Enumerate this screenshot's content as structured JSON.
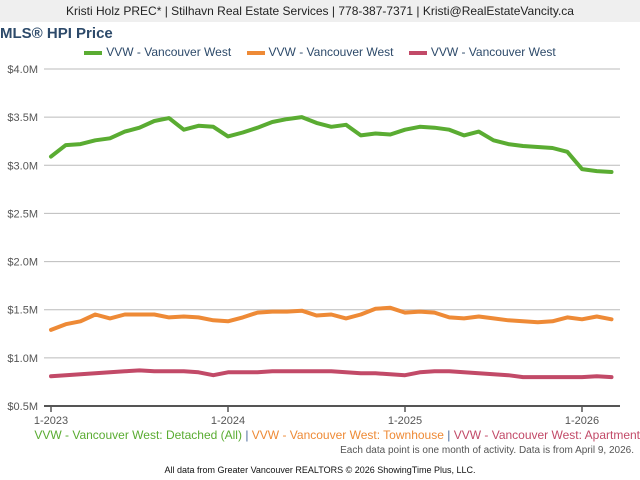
{
  "header": {
    "contact": "Kristi Holz PREC* | Stilhavn Real Estate Services | 778-387-7371 | Kristi@RealEstateVancity.ca"
  },
  "chart_data": {
    "type": "line",
    "title": "MLS® HPI Price",
    "xlabel": "",
    "ylabel": "",
    "x_tick_labels": [
      "1-2023",
      "1-2024",
      "1-2025",
      "1-2026"
    ],
    "y_tick_labels": [
      "$0.5M",
      "$1.0M",
      "$1.5M",
      "$2.0M",
      "$2.5M",
      "$3.0M",
      "$3.5M",
      "$4.0M"
    ],
    "ylim": [
      0.5,
      4.0
    ],
    "x_start": "1-2023",
    "x_months": 39,
    "grid": true,
    "legend_position": "top",
    "series": [
      {
        "name": "VVW - Vancouver West",
        "full_name": "VVW - Vancouver West: Detached (All)",
        "color": "#5aac32",
        "values": [
          3.09,
          3.21,
          3.22,
          3.26,
          3.28,
          3.35,
          3.39,
          3.46,
          3.49,
          3.37,
          3.41,
          3.4,
          3.3,
          3.34,
          3.39,
          3.45,
          3.48,
          3.5,
          3.44,
          3.4,
          3.42,
          3.31,
          3.33,
          3.32,
          3.37,
          3.4,
          3.39,
          3.37,
          3.31,
          3.35,
          3.26,
          3.22,
          3.2,
          3.19,
          3.18,
          3.14,
          2.96,
          2.94,
          2.93
        ]
      },
      {
        "name": "VVW - Vancouver West",
        "full_name": "VVW - Vancouver West: Townhouse",
        "color": "#ee8a36",
        "values": [
          1.29,
          1.35,
          1.38,
          1.45,
          1.41,
          1.45,
          1.45,
          1.45,
          1.42,
          1.43,
          1.42,
          1.39,
          1.38,
          1.42,
          1.47,
          1.48,
          1.48,
          1.49,
          1.44,
          1.45,
          1.41,
          1.45,
          1.51,
          1.52,
          1.47,
          1.48,
          1.47,
          1.42,
          1.41,
          1.43,
          1.41,
          1.39,
          1.38,
          1.37,
          1.38,
          1.42,
          1.4,
          1.43,
          1.4
        ]
      },
      {
        "name": "VVW - Vancouver West",
        "full_name": "VVW - Vancouver West: Apartment",
        "color": "#c24a68",
        "values": [
          0.81,
          0.82,
          0.83,
          0.84,
          0.85,
          0.86,
          0.87,
          0.86,
          0.86,
          0.86,
          0.85,
          0.82,
          0.85,
          0.85,
          0.85,
          0.86,
          0.86,
          0.86,
          0.86,
          0.86,
          0.85,
          0.84,
          0.84,
          0.83,
          0.82,
          0.85,
          0.86,
          0.86,
          0.85,
          0.84,
          0.83,
          0.82,
          0.8,
          0.8,
          0.8,
          0.8,
          0.8,
          0.81,
          0.8
        ]
      }
    ],
    "note": "Each data point is one month of activity. Data is from April 9, 2026."
  },
  "footer": "All data from Greater Vancouver REALTORS © 2026 ShowingTime Plus, LLC."
}
